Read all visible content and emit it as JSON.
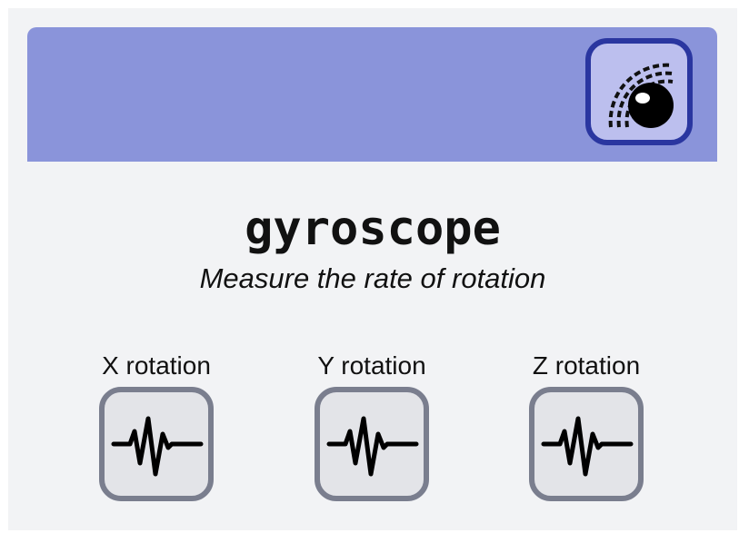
{
  "header": {
    "sensor_icon": "sensor-eye-icon",
    "banner_color": "#8a94da",
    "icon_border_color": "#2a36a0"
  },
  "main": {
    "title": "gyroscope",
    "subtitle": "Measure the rate of rotation"
  },
  "axes": [
    {
      "label": "X rotation",
      "icon": "waveform-icon"
    },
    {
      "label": "Y rotation",
      "icon": "waveform-icon"
    },
    {
      "label": "Z rotation",
      "icon": "waveform-icon"
    }
  ]
}
